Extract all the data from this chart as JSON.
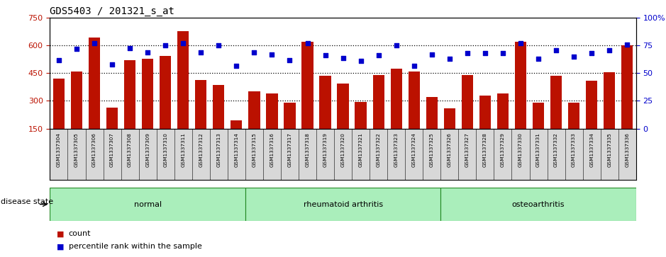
{
  "title": "GDS5403 / 201321_s_at",
  "samples": [
    "GSM1337304",
    "GSM1337305",
    "GSM1337306",
    "GSM1337307",
    "GSM1337308",
    "GSM1337309",
    "GSM1337310",
    "GSM1337311",
    "GSM1337312",
    "GSM1337313",
    "GSM1337314",
    "GSM1337315",
    "GSM1337316",
    "GSM1337317",
    "GSM1337318",
    "GSM1337319",
    "GSM1337320",
    "GSM1337321",
    "GSM1337322",
    "GSM1337323",
    "GSM1337324",
    "GSM1337325",
    "GSM1337326",
    "GSM1337327",
    "GSM1337328",
    "GSM1337329",
    "GSM1337330",
    "GSM1337331",
    "GSM1337332",
    "GSM1337333",
    "GSM1337334",
    "GSM1337335",
    "GSM1337336"
  ],
  "counts": [
    420,
    460,
    645,
    265,
    520,
    530,
    545,
    680,
    415,
    385,
    195,
    350,
    340,
    290,
    620,
    435,
    395,
    295,
    440,
    475,
    460,
    320,
    260,
    440,
    330,
    340,
    620,
    290,
    435,
    290,
    410,
    455,
    600
  ],
  "percentiles": [
    62,
    72,
    77,
    58,
    73,
    69,
    75,
    77,
    69,
    75,
    57,
    69,
    67,
    62,
    77,
    66,
    64,
    61,
    66,
    75,
    57,
    67,
    63,
    68,
    68,
    68,
    77,
    63,
    71,
    65,
    68,
    71,
    76
  ],
  "groups": [
    {
      "label": "normal",
      "start": 0,
      "end": 11
    },
    {
      "label": "rheumatoid arthritis",
      "start": 11,
      "end": 22
    },
    {
      "label": "osteoarthritis",
      "start": 22,
      "end": 33
    }
  ],
  "ylim_left": [
    150,
    750
  ],
  "ylim_right": [
    0,
    100
  ],
  "yticks_left": [
    150,
    300,
    450,
    600,
    750
  ],
  "yticks_right": [
    0,
    25,
    50,
    75,
    100
  ],
  "bar_color": "#bb1100",
  "dot_color": "#0000cc",
  "group_color": "#aaeebb",
  "group_border_color": "#228822",
  "xtick_bg": "#d8d8d8",
  "label_count": "count",
  "label_percentile": "percentile rank within the sample",
  "disease_state_label": "disease state"
}
